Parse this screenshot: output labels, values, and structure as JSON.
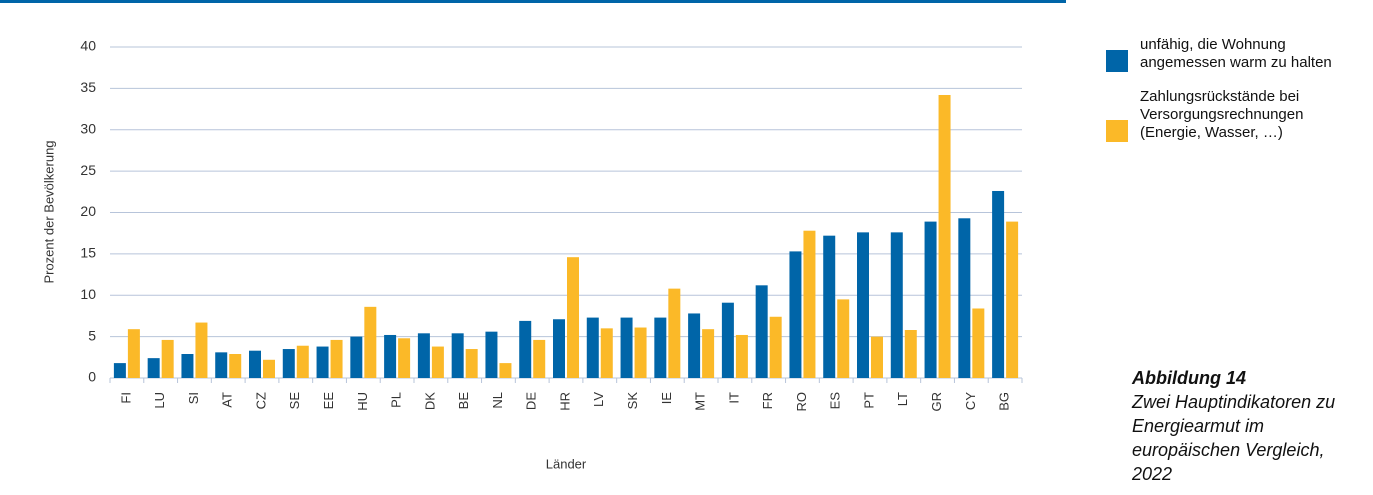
{
  "chart_data": {
    "type": "bar",
    "categories": [
      "FI",
      "LU",
      "SI",
      "AT",
      "CZ",
      "SE",
      "EE",
      "HU",
      "PL",
      "DK",
      "BE",
      "NL",
      "DE",
      "HR",
      "LV",
      "SK",
      "IE",
      "MT",
      "IT",
      "FR",
      "RO",
      "ES",
      "PT",
      "LT",
      "GR",
      "CY",
      "BG"
    ],
    "series": [
      {
        "name": "unfähig, die Wohnung angemessen warm zu halten",
        "color": "#0065a8",
        "values": [
          1.8,
          2.4,
          2.9,
          3.1,
          3.3,
          3.5,
          3.8,
          5.0,
          5.2,
          5.4,
          5.4,
          5.6,
          6.9,
          7.1,
          7.3,
          7.3,
          7.3,
          7.8,
          9.1,
          11.2,
          15.3,
          17.2,
          17.6,
          17.6,
          18.9,
          19.3,
          22.6
        ]
      },
      {
        "name": "Zahlungsrückstände bei Versorgungsrechnungen (Energie, Wasser, …)",
        "color": "#fbb928",
        "values": [
          5.9,
          4.6,
          6.7,
          2.9,
          2.2,
          3.9,
          4.6,
          8.6,
          4.8,
          3.8,
          3.5,
          1.8,
          4.6,
          14.6,
          6.0,
          6.1,
          10.8,
          5.9,
          5.2,
          7.4,
          17.8,
          9.5,
          5.0,
          5.8,
          34.2,
          8.4,
          18.9
        ]
      }
    ],
    "ylim": [
      0,
      40
    ],
    "yticks": [
      0,
      5,
      10,
      15,
      20,
      25,
      30,
      35,
      40
    ],
    "grid": true,
    "ylabel": "Prozent der Bevölkerung",
    "xlabel": "Länder",
    "legend": "right",
    "caption": {
      "label": "Abbildung 14",
      "text": "Zwei Hauptindikatoren zu Energiearmut im europäischen Vergleich, 2022"
    }
  }
}
